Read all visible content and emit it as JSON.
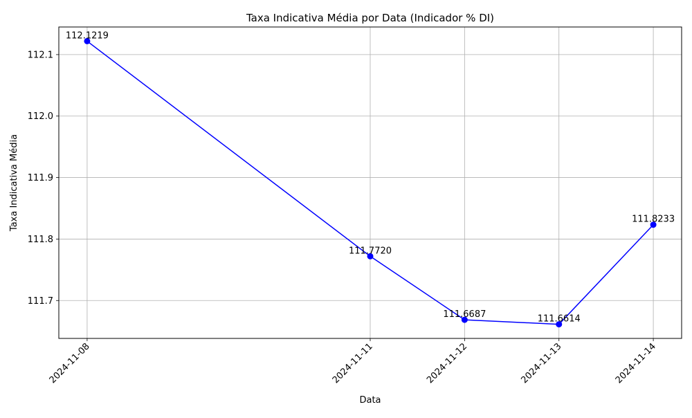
{
  "chart_data": {
    "type": "line",
    "title": "Taxa Indicativa Média por Data (Indicador % DI)",
    "xlabel": "Data",
    "ylabel": "Taxa Indicativa Média",
    "x": [
      "2024-11-08",
      "2024-11-11",
      "2024-11-12",
      "2024-11-13",
      "2024-11-14"
    ],
    "series": [
      {
        "values": [
          112.1219,
          111.772,
          111.6687,
          111.6614,
          111.8233
        ],
        "labels": [
          "112.1219",
          "111.7720",
          "111.6687",
          "111.6614",
          "111.8233"
        ],
        "color": "#0000ff"
      }
    ],
    "ylim": [
      111.6384,
      112.1449
    ],
    "yticks": [
      "111.7",
      "111.8",
      "111.9",
      "112.0",
      "112.1"
    ],
    "grid": true,
    "x_scale": "date"
  }
}
